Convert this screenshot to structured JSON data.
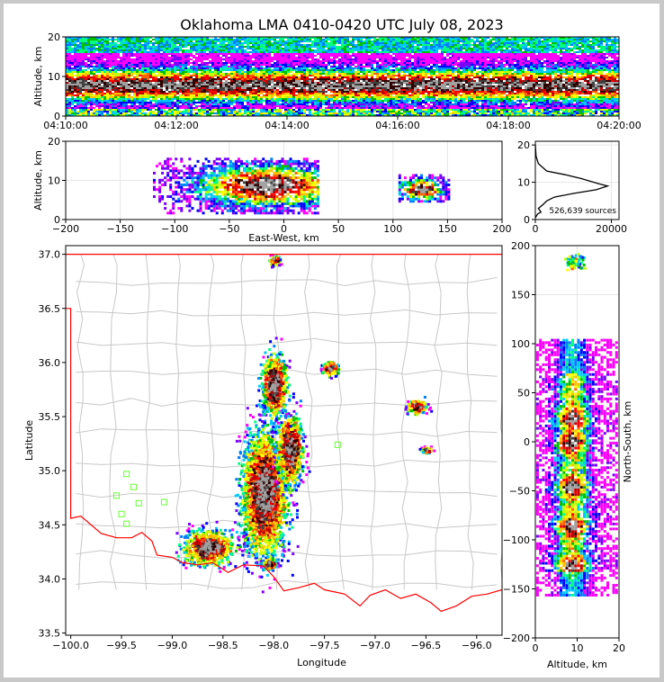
{
  "title": "Oklahoma LMA 0410-0420 UTC July 08, 2023",
  "chart_data": [
    {
      "type": "heatmap",
      "name": "time-height",
      "xlabel": "",
      "ylabel": "Altitude, km",
      "xticks": [
        "04:10:00",
        "04:12:00",
        "04:14:00",
        "04:16:00",
        "04:18:00",
        "04:20:00"
      ],
      "yticks": [
        0,
        10,
        20
      ],
      "ylim": [
        0,
        20
      ],
      "core_altitude_km": [
        5,
        12
      ],
      "peak_altitude_km": 8
    },
    {
      "type": "heatmap",
      "name": "east-west-altitude",
      "xlabel": "East-West, km",
      "ylabel": "Altitude, km",
      "xlim": [
        -200,
        200
      ],
      "ylim": [
        0,
        20
      ],
      "xticks": [
        -200,
        -150,
        -100,
        -50,
        0,
        50,
        100,
        150,
        200
      ],
      "yticks": [
        0,
        10,
        20
      ],
      "clusters": [
        {
          "x_range": [
            -120,
            30
          ],
          "alt_range": [
            2,
            16
          ],
          "peak_x": -15,
          "peak_alt": 9
        },
        {
          "x_range": [
            105,
            150
          ],
          "alt_range": [
            5,
            12
          ],
          "peak_x": 125,
          "peak_alt": 8
        }
      ]
    },
    {
      "type": "line",
      "name": "altitude-histogram",
      "xlim": [
        0,
        22000
      ],
      "ylim": [
        0,
        21
      ],
      "xticks": [
        0,
        20000
      ],
      "yticks": [
        0,
        10,
        20
      ],
      "annotation": "526,639 sources",
      "points": [
        [
          0,
          20
        ],
        [
          200,
          17
        ],
        [
          800,
          15
        ],
        [
          3000,
          13
        ],
        [
          8000,
          12
        ],
        [
          12000,
          11
        ],
        [
          17000,
          9.5
        ],
        [
          19000,
          9
        ],
        [
          16000,
          8
        ],
        [
          10000,
          7
        ],
        [
          5000,
          6
        ],
        [
          3000,
          5
        ],
        [
          2000,
          4
        ],
        [
          800,
          3
        ],
        [
          1500,
          2
        ],
        [
          600,
          1.5
        ],
        [
          300,
          1
        ],
        [
          0,
          0.5
        ]
      ]
    },
    {
      "type": "heatmap",
      "name": "plan-view",
      "xlabel": "Longitude",
      "ylabel": "Latitude",
      "xlim": [
        -100.05,
        -95.75
      ],
      "ylim": [
        33.48,
        37.08
      ],
      "xticks": [
        "-100.0",
        "-99.5",
        "-99.0",
        "-98.5",
        "-98.0",
        "-97.5",
        "-97.0",
        "-96.5",
        "-96.0"
      ],
      "yticks": [
        "33.5",
        "34.0",
        "34.5",
        "35.0",
        "35.5",
        "36.0",
        "36.5",
        "37.0"
      ],
      "stations": [
        [
          -99.45,
          34.97
        ],
        [
          -99.38,
          34.85
        ],
        [
          -99.55,
          34.77
        ],
        [
          -99.33,
          34.7
        ],
        [
          -99.5,
          34.6
        ],
        [
          -99.45,
          34.51
        ],
        [
          -99.08,
          34.71
        ],
        [
          -97.37,
          35.24
        ]
      ],
      "storms": [
        {
          "lon": -98.1,
          "lat": 34.8,
          "rlon": 0.35,
          "rlat": 0.9,
          "n": 2600
        },
        {
          "lon": -97.85,
          "lat": 35.2,
          "rlon": 0.2,
          "rlat": 0.5,
          "n": 900
        },
        {
          "lon": -98.0,
          "lat": 35.8,
          "rlon": 0.2,
          "rlat": 0.45,
          "n": 700
        },
        {
          "lon": -98.65,
          "lat": 34.3,
          "rlon": 0.4,
          "rlat": 0.25,
          "n": 700
        },
        {
          "lon": -98.05,
          "lat": 34.15,
          "rlon": 0.1,
          "rlat": 0.08,
          "n": 250
        },
        {
          "lon": -97.45,
          "lat": 35.95,
          "rlon": 0.12,
          "rlat": 0.1,
          "n": 160
        },
        {
          "lon": -96.6,
          "lat": 35.6,
          "rlon": 0.15,
          "rlat": 0.1,
          "n": 140
        },
        {
          "lon": -96.5,
          "lat": 35.2,
          "rlon": 0.08,
          "rlat": 0.04,
          "n": 90
        },
        {
          "lon": -98.0,
          "lat": 36.95,
          "rlon": 0.08,
          "rlat": 0.07,
          "n": 110
        }
      ]
    },
    {
      "type": "heatmap",
      "name": "altitude-north-south",
      "xlabel": "Altitude, km",
      "ylabel": "North-South, km",
      "xlim": [
        0,
        20
      ],
      "ylim": [
        -200,
        200
      ],
      "xticks": [
        0,
        10,
        20
      ],
      "yticks": [
        -200,
        -150,
        -100,
        -50,
        0,
        50,
        100,
        150,
        200
      ],
      "ns_range": [
        -155,
        105
      ],
      "peaks_ns_km": [
        25,
        0,
        -45,
        -85,
        -125
      ]
    }
  ]
}
